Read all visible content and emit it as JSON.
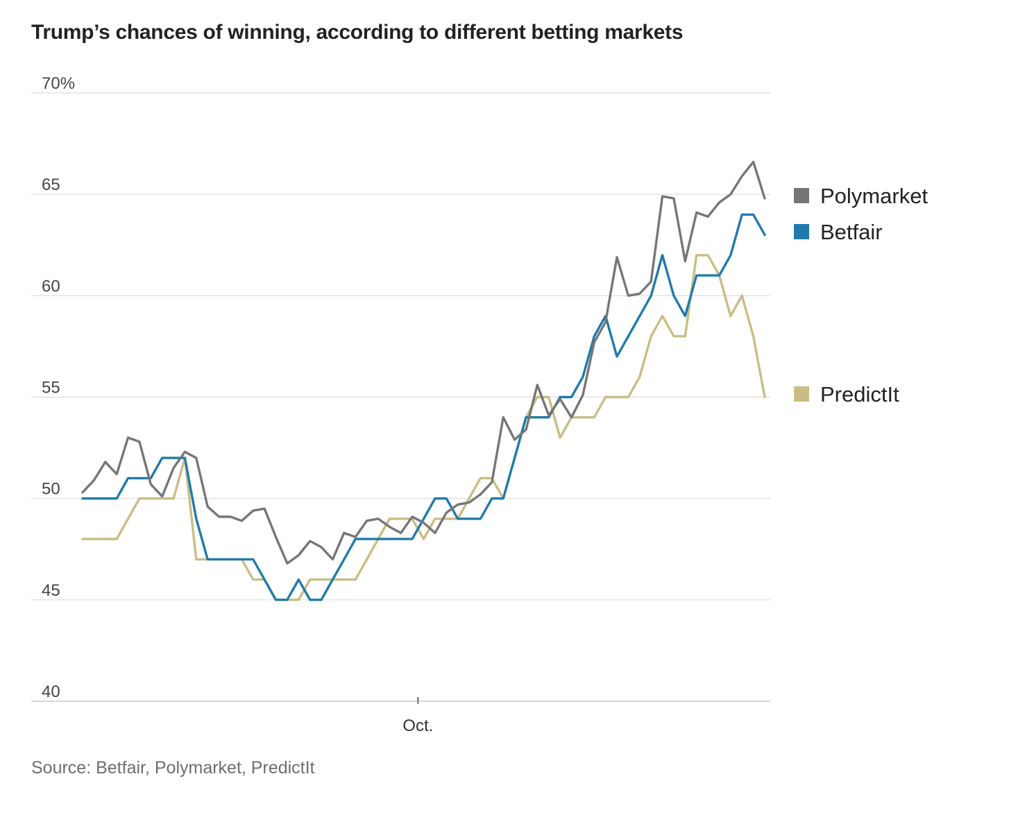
{
  "title": "Trump’s chances of winning, according to different betting markets",
  "source": "Source: Betfair, Polymarket, PredictIt",
  "colors": {
    "Polymarket": "#767676",
    "Betfair": "#1f7aab",
    "PredictIt": "#c8bd84",
    "grid": "#dcdcdc",
    "axis": "#c8c8c8"
  },
  "chart_data": {
    "type": "line",
    "title": "Trump’s chances of winning, according to different betting markets",
    "xlabel": "",
    "ylabel": "",
    "ylim": [
      40,
      70
    ],
    "xlim": [
      0,
      59
    ],
    "y_ticks": [
      {
        "value": 70,
        "label": "70%"
      },
      {
        "value": 65,
        "label": "65"
      },
      {
        "value": 60,
        "label": "60"
      },
      {
        "value": 55,
        "label": "55"
      },
      {
        "value": 50,
        "label": "50"
      },
      {
        "value": 45,
        "label": "45"
      },
      {
        "value": 40,
        "label": "40"
      }
    ],
    "x_ticks": [
      {
        "value": 29.5,
        "label": "Oct."
      }
    ],
    "grid": true,
    "legend": "right",
    "series": [
      {
        "name": "Polymarket",
        "values": [
          50.3,
          50.9,
          51.8,
          51.2,
          53.0,
          52.8,
          50.7,
          50.1,
          51.5,
          52.3,
          52.0,
          49.6,
          49.1,
          49.1,
          48.9,
          49.4,
          49.5,
          48.1,
          46.8,
          47.2,
          47.9,
          47.6,
          47.0,
          48.3,
          48.1,
          48.9,
          49.0,
          48.6,
          48.3,
          49.1,
          48.8,
          48.3,
          49.3,
          49.7,
          49.8,
          50.2,
          50.8,
          54.0,
          52.9,
          53.4,
          55.6,
          54.1,
          54.9,
          54.0,
          55.1,
          57.7,
          58.7,
          61.9,
          60.0,
          60.1,
          60.7,
          64.9,
          64.8,
          61.7,
          64.1,
          63.9,
          64.6,
          65.0,
          65.9,
          66.6,
          64.8
        ],
        "x": [
          0,
          1,
          2,
          3,
          4,
          5,
          6,
          7,
          8,
          9,
          10,
          11,
          12,
          13,
          14,
          15,
          16,
          17,
          18,
          19,
          20,
          21,
          22,
          23,
          24,
          25,
          26,
          27,
          28,
          29,
          30,
          31,
          32,
          33,
          34,
          35,
          36,
          37,
          38,
          39,
          40,
          41,
          42,
          43,
          44,
          45,
          46,
          47,
          48,
          49,
          50,
          51,
          52,
          53,
          54,
          55,
          56,
          57,
          58,
          59,
          60
        ]
      },
      {
        "name": "Betfair",
        "values": [
          50,
          50,
          50,
          50,
          51,
          51,
          51,
          52,
          52,
          52,
          49,
          47,
          47,
          47,
          47,
          47,
          46,
          45,
          45,
          46,
          45,
          45,
          46,
          47,
          48,
          48,
          48,
          48,
          48,
          48,
          49,
          50,
          50,
          49,
          49,
          49,
          50,
          50,
          52,
          54,
          54,
          54,
          55,
          55,
          56,
          58,
          59,
          57,
          58,
          59,
          60,
          62,
          60,
          59,
          61,
          61,
          61,
          62,
          64,
          64,
          63
        ],
        "x": [
          0,
          1,
          2,
          3,
          4,
          5,
          6,
          7,
          8,
          9,
          10,
          11,
          12,
          13,
          14,
          15,
          16,
          17,
          18,
          19,
          20,
          21,
          22,
          23,
          24,
          25,
          26,
          27,
          28,
          29,
          30,
          31,
          32,
          33,
          34,
          35,
          36,
          37,
          38,
          39,
          40,
          41,
          42,
          43,
          44,
          45,
          46,
          47,
          48,
          49,
          50,
          51,
          52,
          53,
          54,
          55,
          56,
          57,
          58,
          59,
          60
        ]
      },
      {
        "name": "PredictIt",
        "values": [
          48,
          48,
          48,
          49,
          50,
          50,
          50,
          50,
          52,
          47,
          47,
          47,
          47,
          47,
          46,
          46,
          45,
          45,
          45,
          46,
          46,
          46,
          46,
          46,
          47,
          48,
          49,
          49,
          49,
          48,
          49,
          49,
          49,
          50,
          51,
          51,
          50,
          52,
          54,
          55,
          55,
          53,
          54,
          54,
          54,
          55,
          55,
          55,
          56,
          58,
          59,
          58,
          58,
          62,
          62,
          61,
          59,
          60,
          58,
          55
        ],
        "x": [
          0,
          2,
          3,
          4,
          5,
          6,
          7,
          8,
          9,
          10,
          11,
          12,
          13,
          14,
          15,
          16,
          17,
          18,
          19,
          20,
          21,
          22,
          23,
          24,
          25,
          26,
          27,
          28,
          29,
          30,
          31,
          32,
          33,
          34,
          35,
          36,
          37,
          38,
          39,
          40,
          41,
          42,
          43,
          44,
          45,
          46,
          47,
          48,
          49,
          50,
          51,
          52,
          53,
          54,
          55,
          56,
          57,
          58,
          59,
          60
        ]
      }
    ]
  }
}
